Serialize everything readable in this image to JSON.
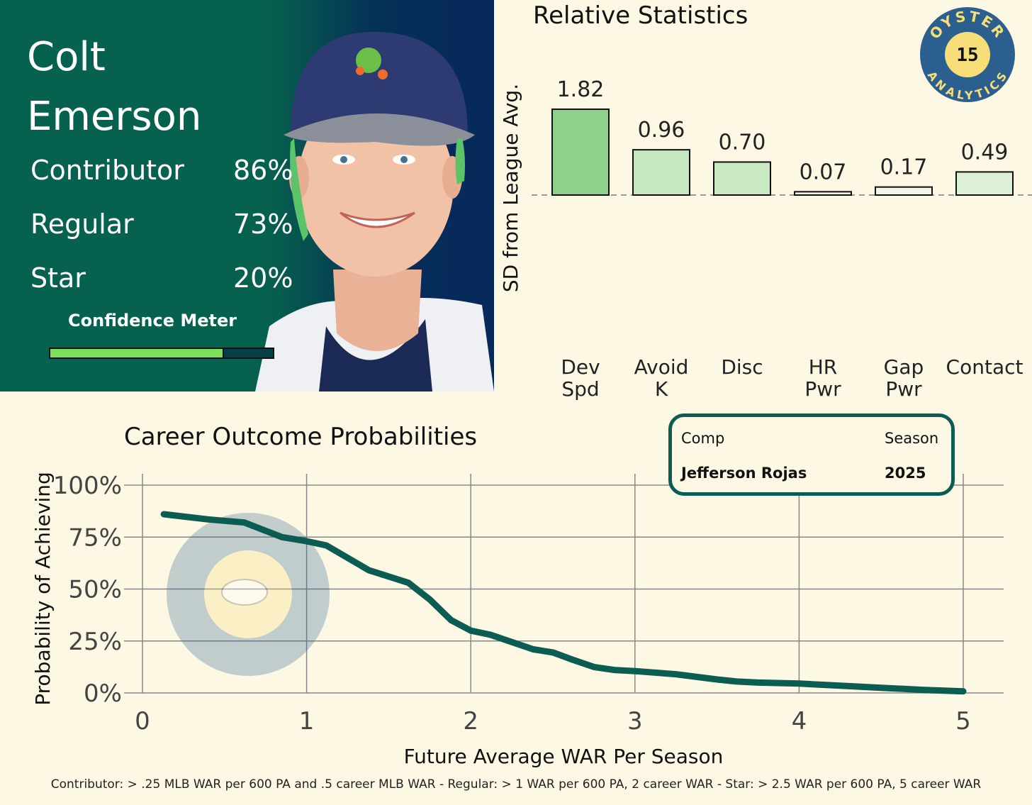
{
  "player": {
    "first_name": "Colt",
    "last_name": "Emerson",
    "probabilities": [
      {
        "label": "Contributor",
        "value": "86%"
      },
      {
        "label": "Regular",
        "value": "73%"
      },
      {
        "label": "Star",
        "value": "20%"
      }
    ],
    "confidence_label": "Confidence Meter",
    "confidence_level": 0.78
  },
  "logo": {
    "number": "15",
    "text_top": "OYSTER",
    "text_bottom": "ANALYTICS"
  },
  "comp": {
    "comp_header": "Comp",
    "season_header": "Season",
    "comp_value": "Jefferson Rojas",
    "season_value": "2025"
  },
  "footnote": "Contributor: > .25 MLB WAR per 600 PA and .5 career MLB WAR - Regular: > 1 WAR per 600 PA, 2 career WAR - Star: > 2.5 WAR per 600 PA, 5 career WAR",
  "colors": {
    "card_green": "#06614e",
    "line_green": "#0b5c53",
    "meter_fill": "#7be05b",
    "background": "#fdf8e4"
  },
  "chart_data": [
    {
      "type": "bar",
      "title": "Relative Statistics",
      "ylabel": "SD from League Avg.",
      "categories": [
        "Dev\nSpd",
        "Avoid\nK",
        "Disc",
        "HR\nPwr",
        "Gap\nPwr",
        "Contact"
      ],
      "values": [
        1.82,
        0.96,
        0.7,
        0.07,
        0.17,
        0.49
      ],
      "value_labels": [
        "1.82",
        "0.96",
        "0.70",
        "0.07",
        "0.17",
        "0.49"
      ],
      "colors": [
        "#8ed18a",
        "#c5e8c0",
        "#c8e9c2",
        "#f3f7e8",
        "#f1f6e6",
        "#dcf0d6"
      ],
      "baseline": 0,
      "grid": false
    },
    {
      "type": "line",
      "title": "Career Outcome Probabilities",
      "xlabel": "Future Average WAR Per Season",
      "ylabel": "Probability of Achieving",
      "xlim": [
        0,
        5
      ],
      "ylim": [
        0,
        100
      ],
      "xticks": [
        "0",
        "1",
        "2",
        "3",
        "4",
        "5"
      ],
      "yticks": [
        "0%",
        "25%",
        "50%",
        "75%",
        "100%"
      ],
      "grid": true,
      "series": [
        {
          "x": [
            0.13,
            0.4,
            0.62,
            0.85,
            1.0,
            1.12,
            1.38,
            1.62,
            1.75,
            1.88,
            2.0,
            2.12,
            2.38,
            2.5,
            2.62,
            2.75,
            2.88,
            3.0,
            3.25,
            3.5,
            3.62,
            3.75,
            4.0,
            4.25,
            4.5,
            4.75,
            5.0
          ],
          "y": [
            86,
            83.5,
            82,
            75,
            73,
            71,
            59,
            53,
            45,
            35,
            30,
            28,
            21,
            19.5,
            16,
            12.5,
            11,
            10.5,
            9,
            6.5,
            5.5,
            5,
            4.5,
            3.5,
            2.5,
            1.5,
            0.8
          ]
        }
      ]
    }
  ]
}
